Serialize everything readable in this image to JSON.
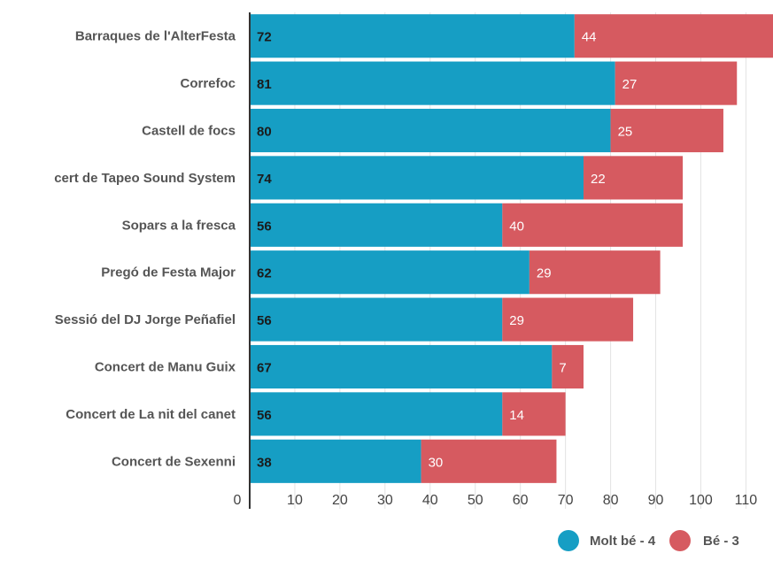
{
  "chart_data": {
    "type": "bar",
    "orientation": "horizontal",
    "stacked": true,
    "categories": [
      "Barraques de l'AlterFesta",
      "Correfoc",
      "Castell de focs",
      "cert de Tapeo Sound System",
      "Sopars a la fresca",
      "Pregó de Festa Major",
      "Sessió del DJ Jorge Peñafiel",
      "Concert de Manu Guix",
      "Concert de La nit del canet",
      "Concert de Sexenni"
    ],
    "series": [
      {
        "name": "Molt bé - 4",
        "color": "#169ec4",
        "values": [
          72,
          81,
          80,
          74,
          56,
          62,
          56,
          67,
          56,
          38
        ]
      },
      {
        "name": "Bé - 3",
        "color": "#d65a60",
        "values": [
          44,
          27,
          25,
          22,
          40,
          29,
          29,
          7,
          14,
          30
        ]
      }
    ],
    "x_ticks": [
      "0",
      "10",
      "20",
      "30",
      "40",
      "50",
      "60",
      "70",
      "80",
      "90",
      "100",
      "110"
    ],
    "xlim": [
      0,
      116
    ],
    "grid": true,
    "legend_position": "bottom-right",
    "title": "",
    "xlabel": "",
    "ylabel": ""
  }
}
